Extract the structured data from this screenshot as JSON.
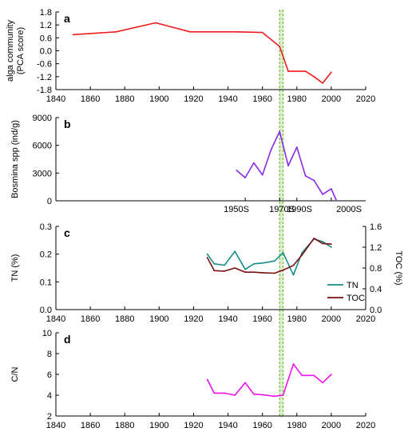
{
  "chart_data": [
    {
      "type": "line",
      "panel": "a",
      "ylabel": "alga community",
      "ylabel2": "(PCA score)",
      "xlim": [
        1840,
        2020
      ],
      "ylim": [
        -1.8,
        1.8
      ],
      "x_ticks": [
        "1840",
        "1860",
        "1880",
        "1900",
        "1920",
        "1940",
        "1960",
        "1980",
        "2000",
        "2020"
      ],
      "y_ticks": [
        "1.8",
        "1.2",
        "0.6",
        "0.0",
        "-0.6",
        "-1.2",
        "-1.8"
      ],
      "series": [
        {
          "color": "#ee1c1c",
          "x": [
            1850,
            1875,
            1898,
            1918,
            1945,
            1960,
            1970,
            1975,
            1985,
            1990,
            1995,
            2000
          ],
          "y": [
            0.75,
            0.88,
            1.3,
            0.88,
            0.88,
            0.85,
            0.2,
            -0.95,
            -0.95,
            -1.2,
            -1.5,
            -1.0
          ]
        }
      ]
    },
    {
      "type": "line",
      "panel": "b",
      "ylabel": "Bosmina spp (ind/g)",
      "xlim": [
        1840,
        2020
      ],
      "ylim": [
        0,
        9000
      ],
      "y_ticks": [
        "9000",
        "6000",
        "3000",
        "0"
      ],
      "x_tick_labels": [
        "1950S",
        "1970S",
        "1990S",
        "2000S"
      ],
      "series": [
        {
          "color": "#8a2be2",
          "x": [
            1945,
            1950,
            1955,
            1960,
            1965,
            1970,
            1975,
            1980,
            1985,
            1990,
            1995,
            2000,
            2003
          ],
          "y": [
            3300,
            2500,
            4100,
            2800,
            5500,
            7500,
            3800,
            5800,
            2700,
            2200,
            700,
            1300,
            0
          ]
        }
      ]
    },
    {
      "type": "line",
      "panel": "c",
      "ylabel": "TN (%)",
      "y2label": "TOC (%)",
      "xlim": [
        1840,
        2020
      ],
      "ylim": [
        0,
        0.3
      ],
      "y2lim": [
        0,
        1.6
      ],
      "x_ticks": [
        "1840",
        "1860",
        "1880",
        "1900",
        "1920",
        "1940",
        "1960",
        "1980",
        "2000",
        "2020"
      ],
      "y_ticks": [
        "0.3",
        "0.2",
        "0.1",
        "0.0"
      ],
      "y2_ticks": [
        "1.6",
        "1.2",
        "0.8",
        "0.4",
        "0.0"
      ],
      "series": [
        {
          "name": "TN",
          "color": "#1a8c8c",
          "axis": "left",
          "x": [
            1928,
            1932,
            1938,
            1944,
            1950,
            1955,
            1960,
            1967,
            1972,
            1978,
            1983,
            1990,
            1995,
            2000
          ],
          "y": [
            0.2,
            0.165,
            0.16,
            0.21,
            0.145,
            0.165,
            0.168,
            0.175,
            0.205,
            0.125,
            0.205,
            0.255,
            0.245,
            0.225
          ]
        },
        {
          "name": "TOC",
          "color": "#7b0f0f",
          "axis": "right",
          "x": [
            1928,
            1932,
            1938,
            1944,
            1950,
            1955,
            1960,
            1967,
            1972,
            1978,
            1983,
            1990,
            1995,
            2000
          ],
          "y": [
            1.0,
            0.75,
            0.74,
            0.8,
            0.72,
            0.72,
            0.71,
            0.7,
            0.76,
            0.85,
            1.05,
            1.37,
            1.27,
            1.26
          ]
        }
      ]
    },
    {
      "type": "line",
      "panel": "d",
      "ylabel": "C/N",
      "xlim": [
        1840,
        2020
      ],
      "ylim": [
        2,
        10
      ],
      "x_ticks": [
        "1840",
        "1860",
        "1880",
        "1900",
        "1920",
        "1940",
        "1960",
        "1980",
        "2000",
        "2020"
      ],
      "y_ticks": [
        "10",
        "8",
        "6",
        "4",
        "2"
      ],
      "series": [
        {
          "color": "#ee11ee",
          "x": [
            1928,
            1932,
            1938,
            1944,
            1950,
            1955,
            1960,
            1967,
            1972,
            1978,
            1983,
            1990,
            1995,
            2000
          ],
          "y": [
            5.5,
            4.2,
            4.2,
            4.0,
            5.2,
            4.1,
            4.05,
            3.9,
            4.0,
            7.0,
            5.9,
            5.9,
            5.2,
            6.0
          ]
        }
      ]
    }
  ],
  "marker": {
    "x": [
      1970,
      1972
    ],
    "color": "#7bc043"
  }
}
